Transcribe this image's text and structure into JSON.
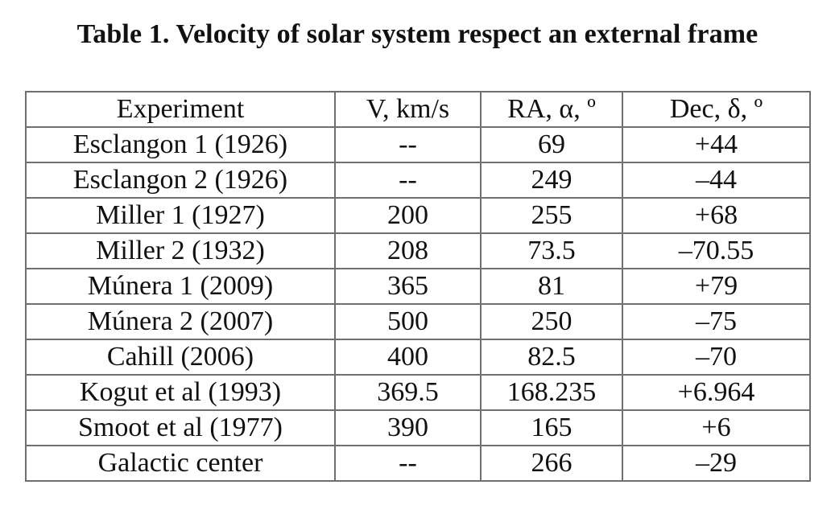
{
  "caption": "Table 1. Velocity of solar system respect an external frame",
  "table": {
    "headers": [
      "Experiment",
      "V, km/s",
      "RA, α, º",
      "Dec, δ, º"
    ],
    "rows": [
      [
        "Esclangon 1 (1926)",
        "--",
        "69",
        "+44"
      ],
      [
        "Esclangon 2 (1926)",
        "--",
        "249",
        "–44"
      ],
      [
        "Miller 1 (1927)",
        "200",
        "255",
        "+68"
      ],
      [
        "Miller 2 (1932)",
        "208",
        "73.5",
        "–70.55"
      ],
      [
        "Múnera 1 (2009)",
        "365",
        "81",
        "+79"
      ],
      [
        "Múnera 2 (2007)",
        "500",
        "250",
        "–75"
      ],
      [
        "Cahill (2006)",
        "400",
        "82.5",
        "–70"
      ],
      [
        "Kogut et al (1993)",
        "369.5",
        "168.235",
        "+6.964"
      ],
      [
        "Smoot et al (1977)",
        "390",
        "165",
        "+6"
      ],
      [
        "Galactic center",
        "--",
        "266",
        "–29"
      ]
    ]
  }
}
